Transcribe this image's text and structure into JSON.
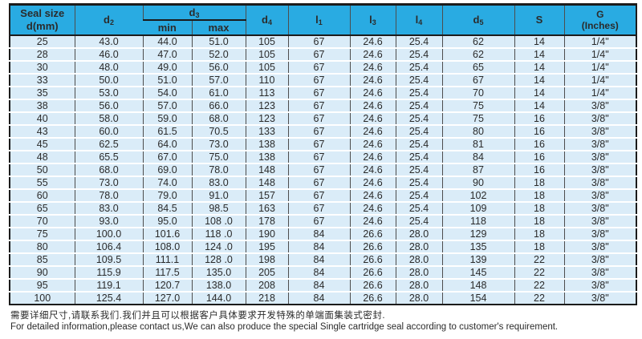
{
  "colors": {
    "header_bg": "#29abe2",
    "row_bg": "#daecf8",
    "border_dark": "#1b1b1b",
    "grid": "#4d4d4d",
    "text": "#2b2b2b"
  },
  "table": {
    "columns": {
      "seal_size": {
        "line1": "Seal size",
        "line2": "d(mm)"
      },
      "d2": {
        "base": "d",
        "sub": "2"
      },
      "d3": {
        "base": "d",
        "sub": "3",
        "min_label": "min",
        "max_label": "max"
      },
      "d4": {
        "base": "d",
        "sub": "4"
      },
      "l1": {
        "base": "l",
        "sub": "1"
      },
      "l3": {
        "base": "l",
        "sub": "3"
      },
      "l4": {
        "base": "l",
        "sub": "4"
      },
      "d5": {
        "base": "d",
        "sub": "5"
      },
      "s": {
        "label": "S"
      },
      "g": {
        "line1": "G",
        "line2": "(Inches)"
      }
    },
    "rows": [
      [
        "25",
        "43.0",
        "44.0",
        "51.0",
        "105",
        "67",
        "24.6",
        "25.4",
        "62",
        "14",
        "1/4\""
      ],
      [
        "28",
        "46.0",
        "47.0",
        "52.0",
        "105",
        "67",
        "24.6",
        "25.4",
        "62",
        "14",
        "1/4\""
      ],
      [
        "30",
        "48.0",
        "49.0",
        "56.0",
        "105",
        "67",
        "24.6",
        "25.4",
        "65",
        "14",
        "1/4\""
      ],
      [
        "33",
        "50.0",
        "51.0",
        "57.0",
        "110",
        "67",
        "24.6",
        "25.4",
        "67",
        "14",
        "1/4\""
      ],
      [
        "35",
        "53.0",
        "54.0",
        "61.0",
        "113",
        "67",
        "24.6",
        "25.4",
        "70",
        "14",
        "1/4\""
      ],
      [
        "38",
        "56.0",
        "57.0",
        "66.0",
        "123",
        "67",
        "24.6",
        "25.4",
        "75",
        "14",
        "3/8\""
      ],
      [
        "40",
        "58.0",
        "59.0",
        "68.0",
        "123",
        "67",
        "24.6",
        "25.4",
        "75",
        "16",
        "3/8\""
      ],
      [
        "43",
        "60.0",
        "61.5",
        "70.5",
        "133",
        "67",
        "24.6",
        "25.4",
        "80",
        "16",
        "3/8\""
      ],
      [
        "45",
        "62.5",
        "64.0",
        "73.0",
        "138",
        "67",
        "24.6",
        "25.4",
        "81",
        "16",
        "3/8\""
      ],
      [
        "48",
        "65.5",
        "67.0",
        "75.0",
        "138",
        "67",
        "24.6",
        "25.4",
        "84",
        "16",
        "3/8\""
      ],
      [
        "50",
        "68.0",
        "69.0",
        "78.0",
        "148",
        "67",
        "24.6",
        "25.4",
        "87",
        "16",
        "3/8\""
      ],
      [
        "55",
        "73.0",
        "74.0",
        "83.0",
        "148",
        "67",
        "24.6",
        "25.4",
        "90",
        "18",
        "3/8\""
      ],
      [
        "60",
        "78.0",
        "79.0",
        "91.0",
        "157",
        "67",
        "24.6",
        "25.4",
        "102",
        "18",
        "3/8\""
      ],
      [
        "65",
        "83.0",
        "84.5",
        "98.5",
        "163",
        "67",
        "24.6",
        "25.4",
        "109",
        "18",
        "3/8\""
      ],
      [
        "70",
        "93.0",
        "95.0",
        "108 .0",
        "178",
        "67",
        "24.6",
        "25.4",
        "118",
        "18",
        "3/8\""
      ],
      [
        "75",
        "100.0",
        "101.6",
        "118 .0",
        "190",
        "84",
        "26.6",
        "28.0",
        "129",
        "18",
        "3/8\""
      ],
      [
        "80",
        "106.4",
        "108.0",
        "124 .0",
        "195",
        "84",
        "26.6",
        "28.0",
        "135",
        "18",
        "3/8\""
      ],
      [
        "85",
        "109.5",
        "111.1",
        "128 .0",
        "198",
        "84",
        "26.6",
        "28.0",
        "139",
        "22",
        "3/8\""
      ],
      [
        "90",
        "115.9",
        "117.5",
        "135.0",
        "205",
        "84",
        "26.6",
        "28.0",
        "145",
        "22",
        "3/8\""
      ],
      [
        "95",
        "119.1",
        "120.7",
        "138.0",
        "208",
        "84",
        "26.6",
        "28.0",
        "148",
        "22",
        "3/8\""
      ],
      [
        "100",
        "125.4",
        "127.0",
        "144.0",
        "218",
        "84",
        "26.6",
        "28.0",
        "154",
        "22",
        "3/8\""
      ]
    ]
  },
  "footer": {
    "note_zh": "需要详细尺寸,请联系我们.我们并且可以根据客户具体要求开发特殊的单端面集装式密封.",
    "note_en": "For detailed information,please contact us,We can also produce the special Single cartridge seal according to customer's requirement."
  }
}
